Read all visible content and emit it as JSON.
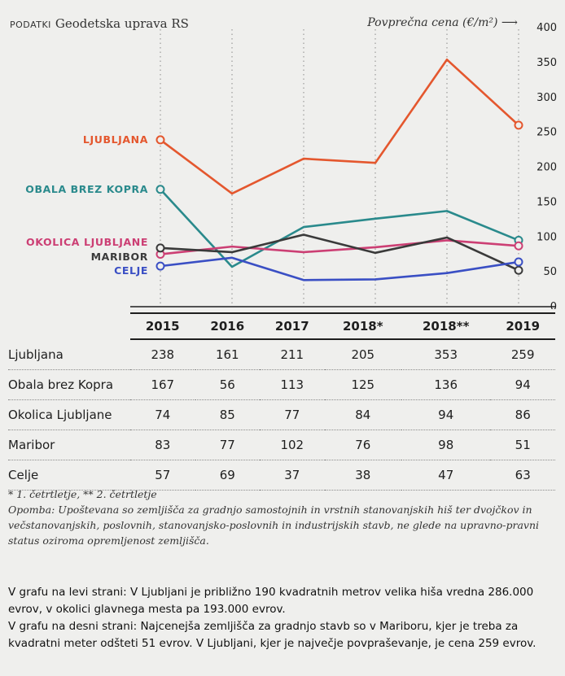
{
  "source": {
    "label": "PODATKI",
    "text": "Geodetska uprava RS"
  },
  "header": {
    "y_title": "Povprečna cena (€/m²)",
    "arrow": "⟶"
  },
  "chart_data": {
    "type": "line",
    "x": [
      "2015",
      "2016",
      "2017",
      "2018*",
      "2018**",
      "2019"
    ],
    "ylim": [
      0,
      400
    ],
    "yticks": [
      0,
      50,
      100,
      150,
      200,
      250,
      300,
      350,
      400
    ],
    "ylabel": "Povprečna cena (€/m²)",
    "grid": "vertical dotted",
    "series": [
      {
        "name": "LJUBLJANA",
        "row_label": "Ljubljana",
        "color": "#e4572e",
        "values": [
          238,
          161,
          211,
          205,
          353,
          259
        ]
      },
      {
        "name": "OBALA BREZ KOPRA",
        "row_label": "Obala brez Kopra",
        "color": "#2a8a8c",
        "values": [
          167,
          56,
          113,
          125,
          136,
          94
        ]
      },
      {
        "name": "OKOLICA LJUBLJANE",
        "row_label": "Okolica Ljubljane",
        "color": "#cc3f74",
        "values": [
          74,
          85,
          77,
          84,
          94,
          86
        ]
      },
      {
        "name": "MARIBOR",
        "row_label": "Maribor",
        "color": "#3a3a3a",
        "values": [
          83,
          77,
          102,
          76,
          98,
          51
        ]
      },
      {
        "name": "CELJE",
        "row_label": "Celje",
        "color": "#3a4fc4",
        "values": [
          57,
          69,
          37,
          38,
          47,
          63
        ]
      }
    ]
  },
  "notes": {
    "footnote": "* 1. četrtletje, ** 2. četrtletje",
    "remark": "Opomba: Upoštevana so zemljišča za gradnjo samostojnih in vrstnih stanovanjskih hiš ter dvojčkov in večstanovanjskih, poslovnih, stanovanjsko-poslovnih in industrijskih stavb, ne glede na upravno-pravni status oziroma opremljenost zemljišča."
  },
  "caption": {
    "p1": "V grafu na levi strani: V Ljubljani je približno 190 kvadratnih metrov velika hiša vrednа 286.000 evrov, v okolici glavnega mesta pa 193.000 evrov.",
    "p2": "V grafu na desni strani: Najcenejša zemljišča za gradnjo stavb so v Mariboru, kjer je treba za kvadratni meter odšteti 51 evrov. V Ljubljani, kjer je največje povpraševanje, je cena 259 evrov."
  },
  "colors": {
    "background": "#efefed",
    "text": "#1e1e1e",
    "grid": "#9a9a9a"
  }
}
